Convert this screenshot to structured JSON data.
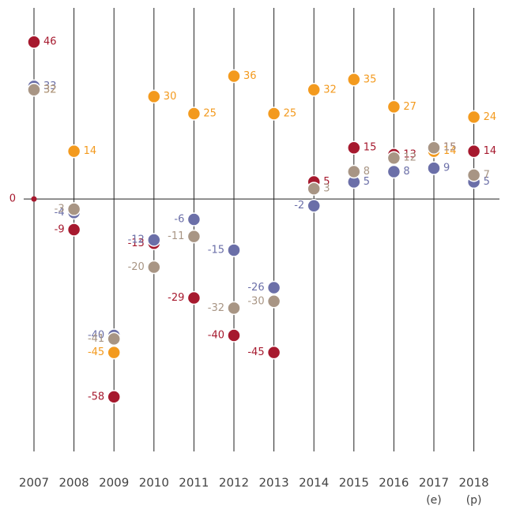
{
  "chart_data": {
    "type": "dot",
    "categories": [
      "2007",
      "2008",
      "2009",
      "2010",
      "2011",
      "2012",
      "2013",
      "2014",
      "2015",
      "2016",
      "2017",
      "2018"
    ],
    "category_notes": [
      null,
      null,
      null,
      null,
      null,
      null,
      null,
      null,
      null,
      null,
      "(e)",
      "(p)"
    ],
    "ylim": [
      -74,
      56
    ],
    "yticks": [
      0
    ],
    "series": [
      {
        "color": "#a6192e",
        "values": [
          46,
          -9,
          -58,
          -13,
          -29,
          -40,
          -45,
          5,
          15,
          13,
          15,
          14
        ]
      },
      {
        "color": "#6b6fa8",
        "values": [
          33,
          -4,
          -40,
          -12,
          -6,
          -15,
          -26,
          -2,
          5,
          8,
          9,
          5
        ]
      },
      {
        "color": "#f39a1e",
        "values": [
          32,
          14,
          -45,
          30,
          25,
          36,
          25,
          32,
          35,
          27,
          14,
          24
        ]
      },
      {
        "color": "#a89584",
        "values": [
          32,
          -3,
          -41,
          -20,
          -11,
          -32,
          -30,
          3,
          8,
          12,
          15,
          7
        ]
      }
    ]
  }
}
